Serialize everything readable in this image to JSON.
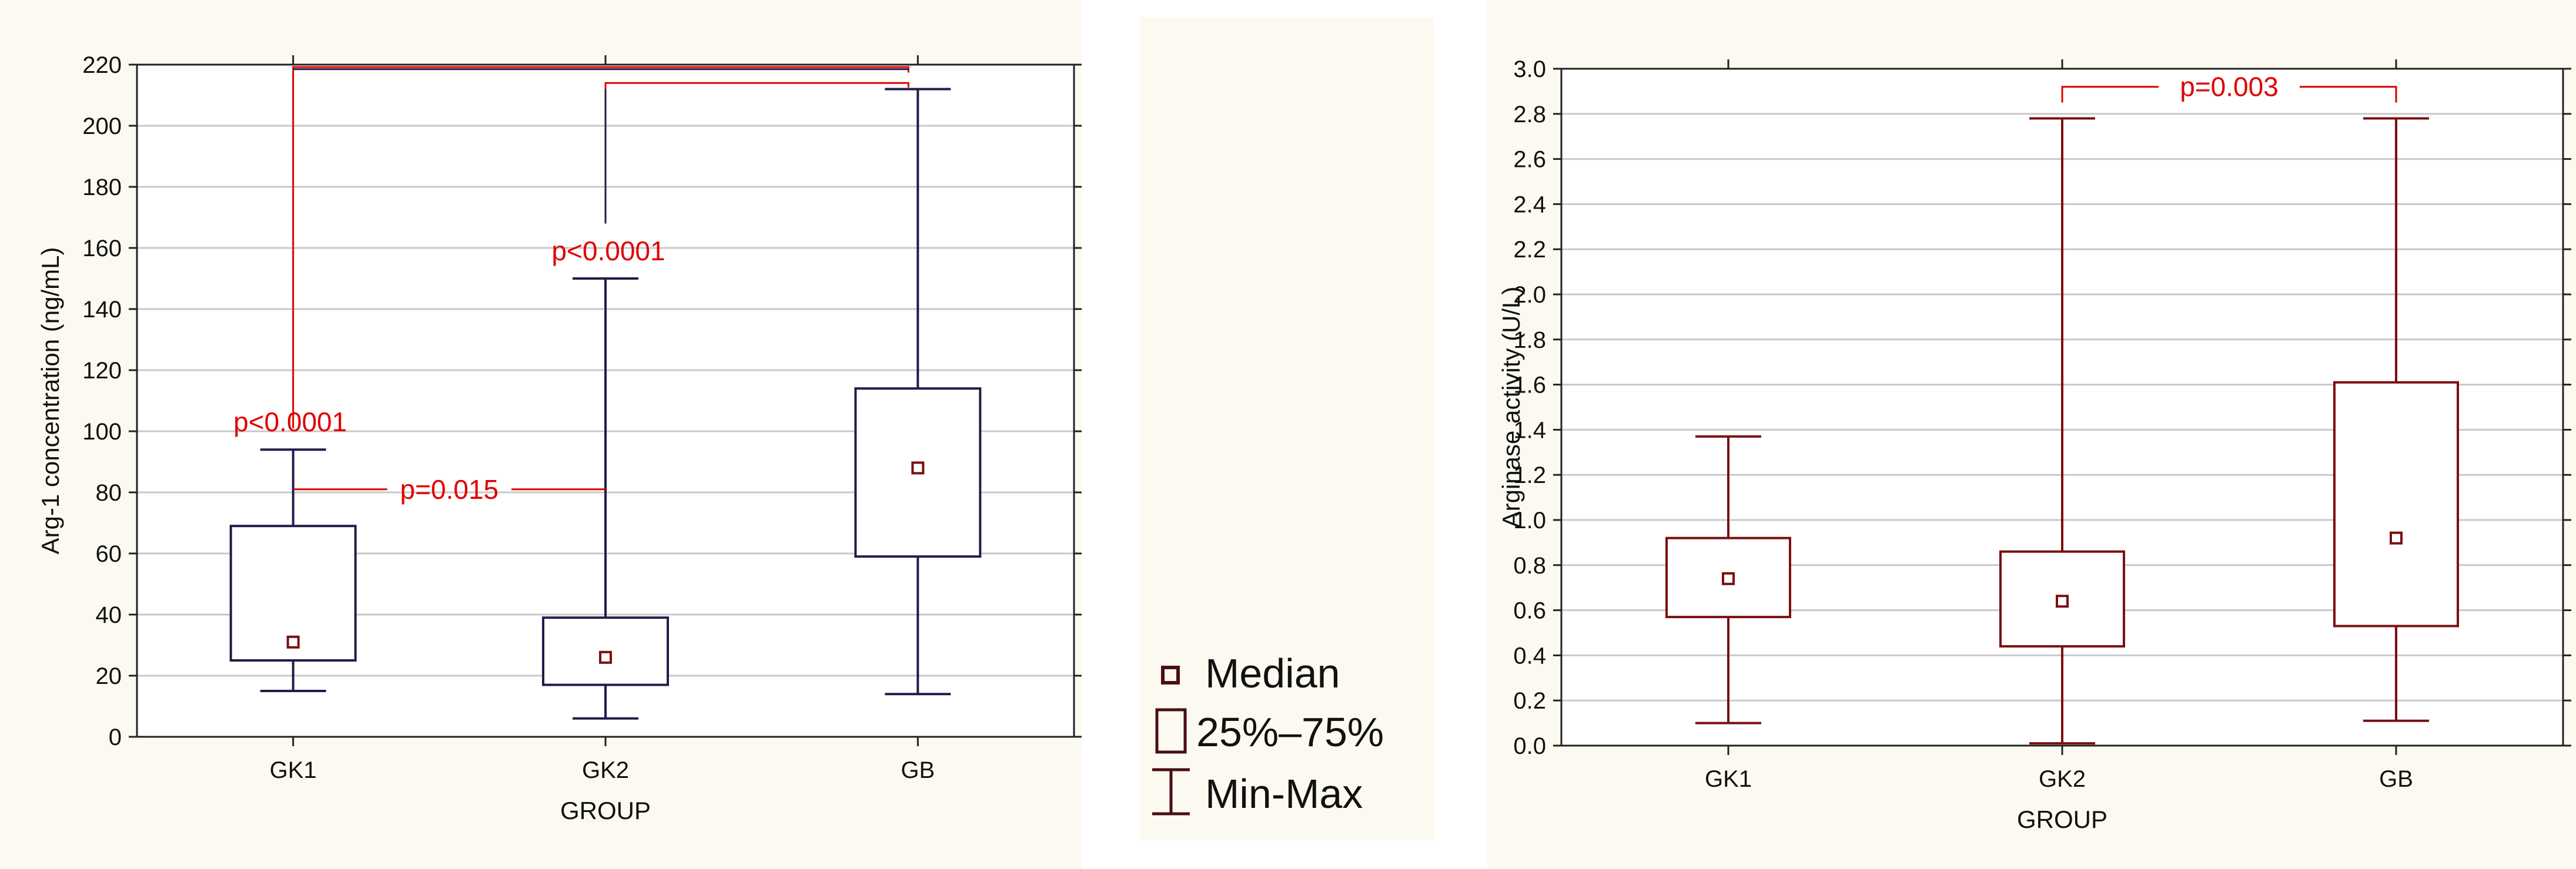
{
  "chart_data": [
    {
      "type": "box",
      "xlabel": "GROUP",
      "ylabel": "Arg-1 concentration (ng/mL)",
      "ylim": [
        0,
        220
      ],
      "yticks": [
        "0",
        "20",
        "40",
        "60",
        "80",
        "100",
        "120",
        "140",
        "160",
        "180",
        "200",
        "220"
      ],
      "ytick_values": [
        0,
        20,
        40,
        60,
        80,
        100,
        120,
        140,
        160,
        180,
        200,
        220
      ],
      "grid": true,
      "categories": [
        "GK1",
        "GK2",
        "GB"
      ],
      "boxes": [
        {
          "group": "GK1",
          "min": 15,
          "q1": 25,
          "median": 31,
          "q3": 69,
          "max": 94
        },
        {
          "group": "GK2",
          "min": 6,
          "q1": 17,
          "median": 26,
          "q3": 39,
          "max": 150
        },
        {
          "group": "GB",
          "min": 14,
          "q1": 59,
          "median": 88,
          "q3": 114,
          "max": 212
        }
      ],
      "annotations": [
        {
          "text": "p<0.0001",
          "between": [
            "GK1",
            "GB"
          ]
        },
        {
          "text": "p<0.0001",
          "between": [
            "GK2",
            "GB"
          ]
        },
        {
          "text": "p=0.015",
          "between": [
            "GK1",
            "GK2"
          ]
        }
      ],
      "colors": {
        "box": "#1e1e4a",
        "median": "#7a1010",
        "annotation": "#e00000",
        "grid": "#c8c8c8",
        "bg": "#fcfaf0"
      }
    },
    {
      "type": "box",
      "xlabel": "GROUP",
      "ylabel": "Arginase activity (U/L)",
      "ylim": [
        0,
        3.0
      ],
      "yticks": [
        "0.0",
        "0.2",
        "0.4",
        "0.6",
        "0.8",
        "1.0",
        "1.2",
        "1.4",
        "1.6",
        "1.8",
        "2.0",
        "2.2",
        "2.4",
        "2.6",
        "2.8",
        "3.0"
      ],
      "ytick_values": [
        0,
        0.2,
        0.4,
        0.6,
        0.8,
        1.0,
        1.2,
        1.4,
        1.6,
        1.8,
        2.0,
        2.2,
        2.4,
        2.6,
        2.8,
        3.0
      ],
      "grid": true,
      "categories": [
        "GK1",
        "GK2",
        "GB"
      ],
      "boxes": [
        {
          "group": "GK1",
          "min": 0.1,
          "q1": 0.57,
          "median": 0.74,
          "q3": 0.92,
          "max": 1.37
        },
        {
          "group": "GK2",
          "min": 0.01,
          "q1": 0.44,
          "median": 0.64,
          "q3": 0.86,
          "max": 2.78
        },
        {
          "group": "GB",
          "min": 0.11,
          "q1": 0.53,
          "median": 0.92,
          "q3": 1.61,
          "max": 2.78
        }
      ],
      "annotations": [
        {
          "text": "p=0.003",
          "between": [
            "GK2",
            "GB"
          ]
        }
      ],
      "colors": {
        "box": "#7a1010",
        "median": "#7a1010",
        "annotation": "#e00000",
        "grid": "#c8c8c8",
        "bg": "#fcfaf0"
      }
    }
  ],
  "legend": {
    "items": [
      {
        "label": "Median",
        "icon": "median-marker-icon"
      },
      {
        "label": "25%–75%",
        "icon": "box-range-icon"
      },
      {
        "label": "Min-Max",
        "icon": "whisker-range-icon"
      }
    ],
    "colors": {
      "bg": "#fcfaf0",
      "icon": "#4a0e14",
      "text": "#111111"
    }
  }
}
